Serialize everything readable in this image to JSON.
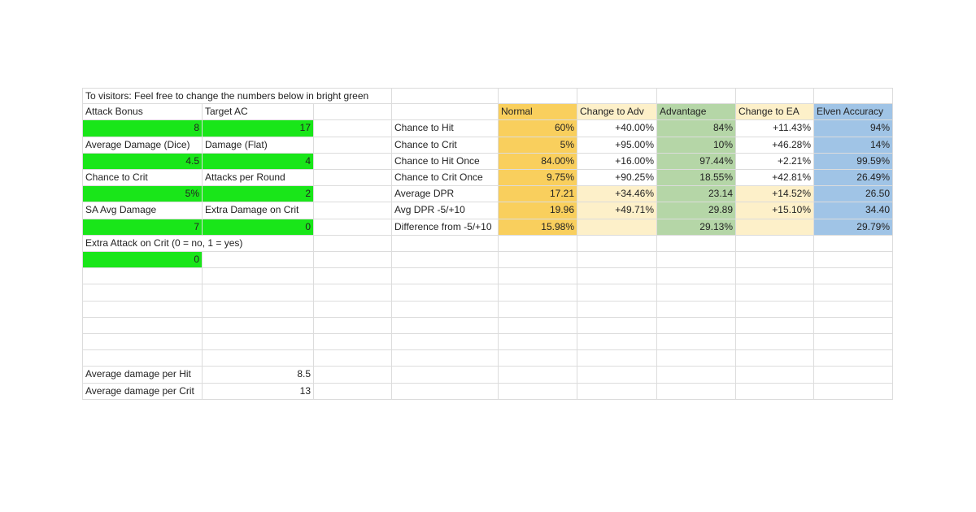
{
  "note": "To visitors: Feel free to change the numbers below in bright green",
  "inputs": [
    {
      "label": "Attack Bonus",
      "value": "8"
    },
    {
      "label": "Target AC",
      "value": "17"
    },
    {
      "label": "Average Damage (Dice)",
      "value": "4.5"
    },
    {
      "label": "Damage (Flat)",
      "value": "4"
    },
    {
      "label": "Chance to Crit",
      "value": "5%"
    },
    {
      "label": "Attacks per Round",
      "value": "2"
    },
    {
      "label": "SA Avg Damage",
      "value": "7"
    },
    {
      "label": "Extra Damage on Crit",
      "value": "0"
    },
    {
      "label": "Extra Attack on Crit (0 = no, 1 = yes)",
      "value": "0"
    }
  ],
  "summary": [
    {
      "label": "Average damage per Hit",
      "value": "8.5"
    },
    {
      "label": "Average damage per Crit",
      "value": "13"
    }
  ],
  "results": {
    "headers": [
      "Normal",
      "Change to Adv",
      "Advantage",
      "Change to EA",
      "Elven Accuracy"
    ],
    "rows": [
      {
        "label": "Chance to Hit",
        "values": [
          "60%",
          "+40.00%",
          "84%",
          "+11.43%",
          "94%"
        ]
      },
      {
        "label": "Chance to Crit",
        "values": [
          "5%",
          "+95.00%",
          "10%",
          "+46.28%",
          "14%"
        ]
      },
      {
        "label": "Chance to Hit Once",
        "values": [
          "84.00%",
          "+16.00%",
          "97.44%",
          "+2.21%",
          "99.59%"
        ]
      },
      {
        "label": "Chance to Crit Once",
        "values": [
          "9.75%",
          "+90.25%",
          "18.55%",
          "+42.81%",
          "26.49%"
        ]
      },
      {
        "label": "Average DPR",
        "values": [
          "17.21",
          "+34.46%",
          "23.14",
          "+14.52%",
          "26.50"
        ]
      },
      {
        "label": "Avg DPR -5/+10",
        "values": [
          "19.96",
          "+49.71%",
          "29.89",
          "+15.10%",
          "34.40"
        ]
      },
      {
        "label": "Difference from -5/+10",
        "values": [
          "15.98%",
          "",
          "29.13%",
          "",
          "29.79%"
        ]
      }
    ]
  },
  "colors": {
    "input_green": "#19e619",
    "normal": "#f9cf5d",
    "advantage": "#b5d6a7",
    "elven_accuracy": "#a0c4e6",
    "change": "#fdf0c9"
  }
}
